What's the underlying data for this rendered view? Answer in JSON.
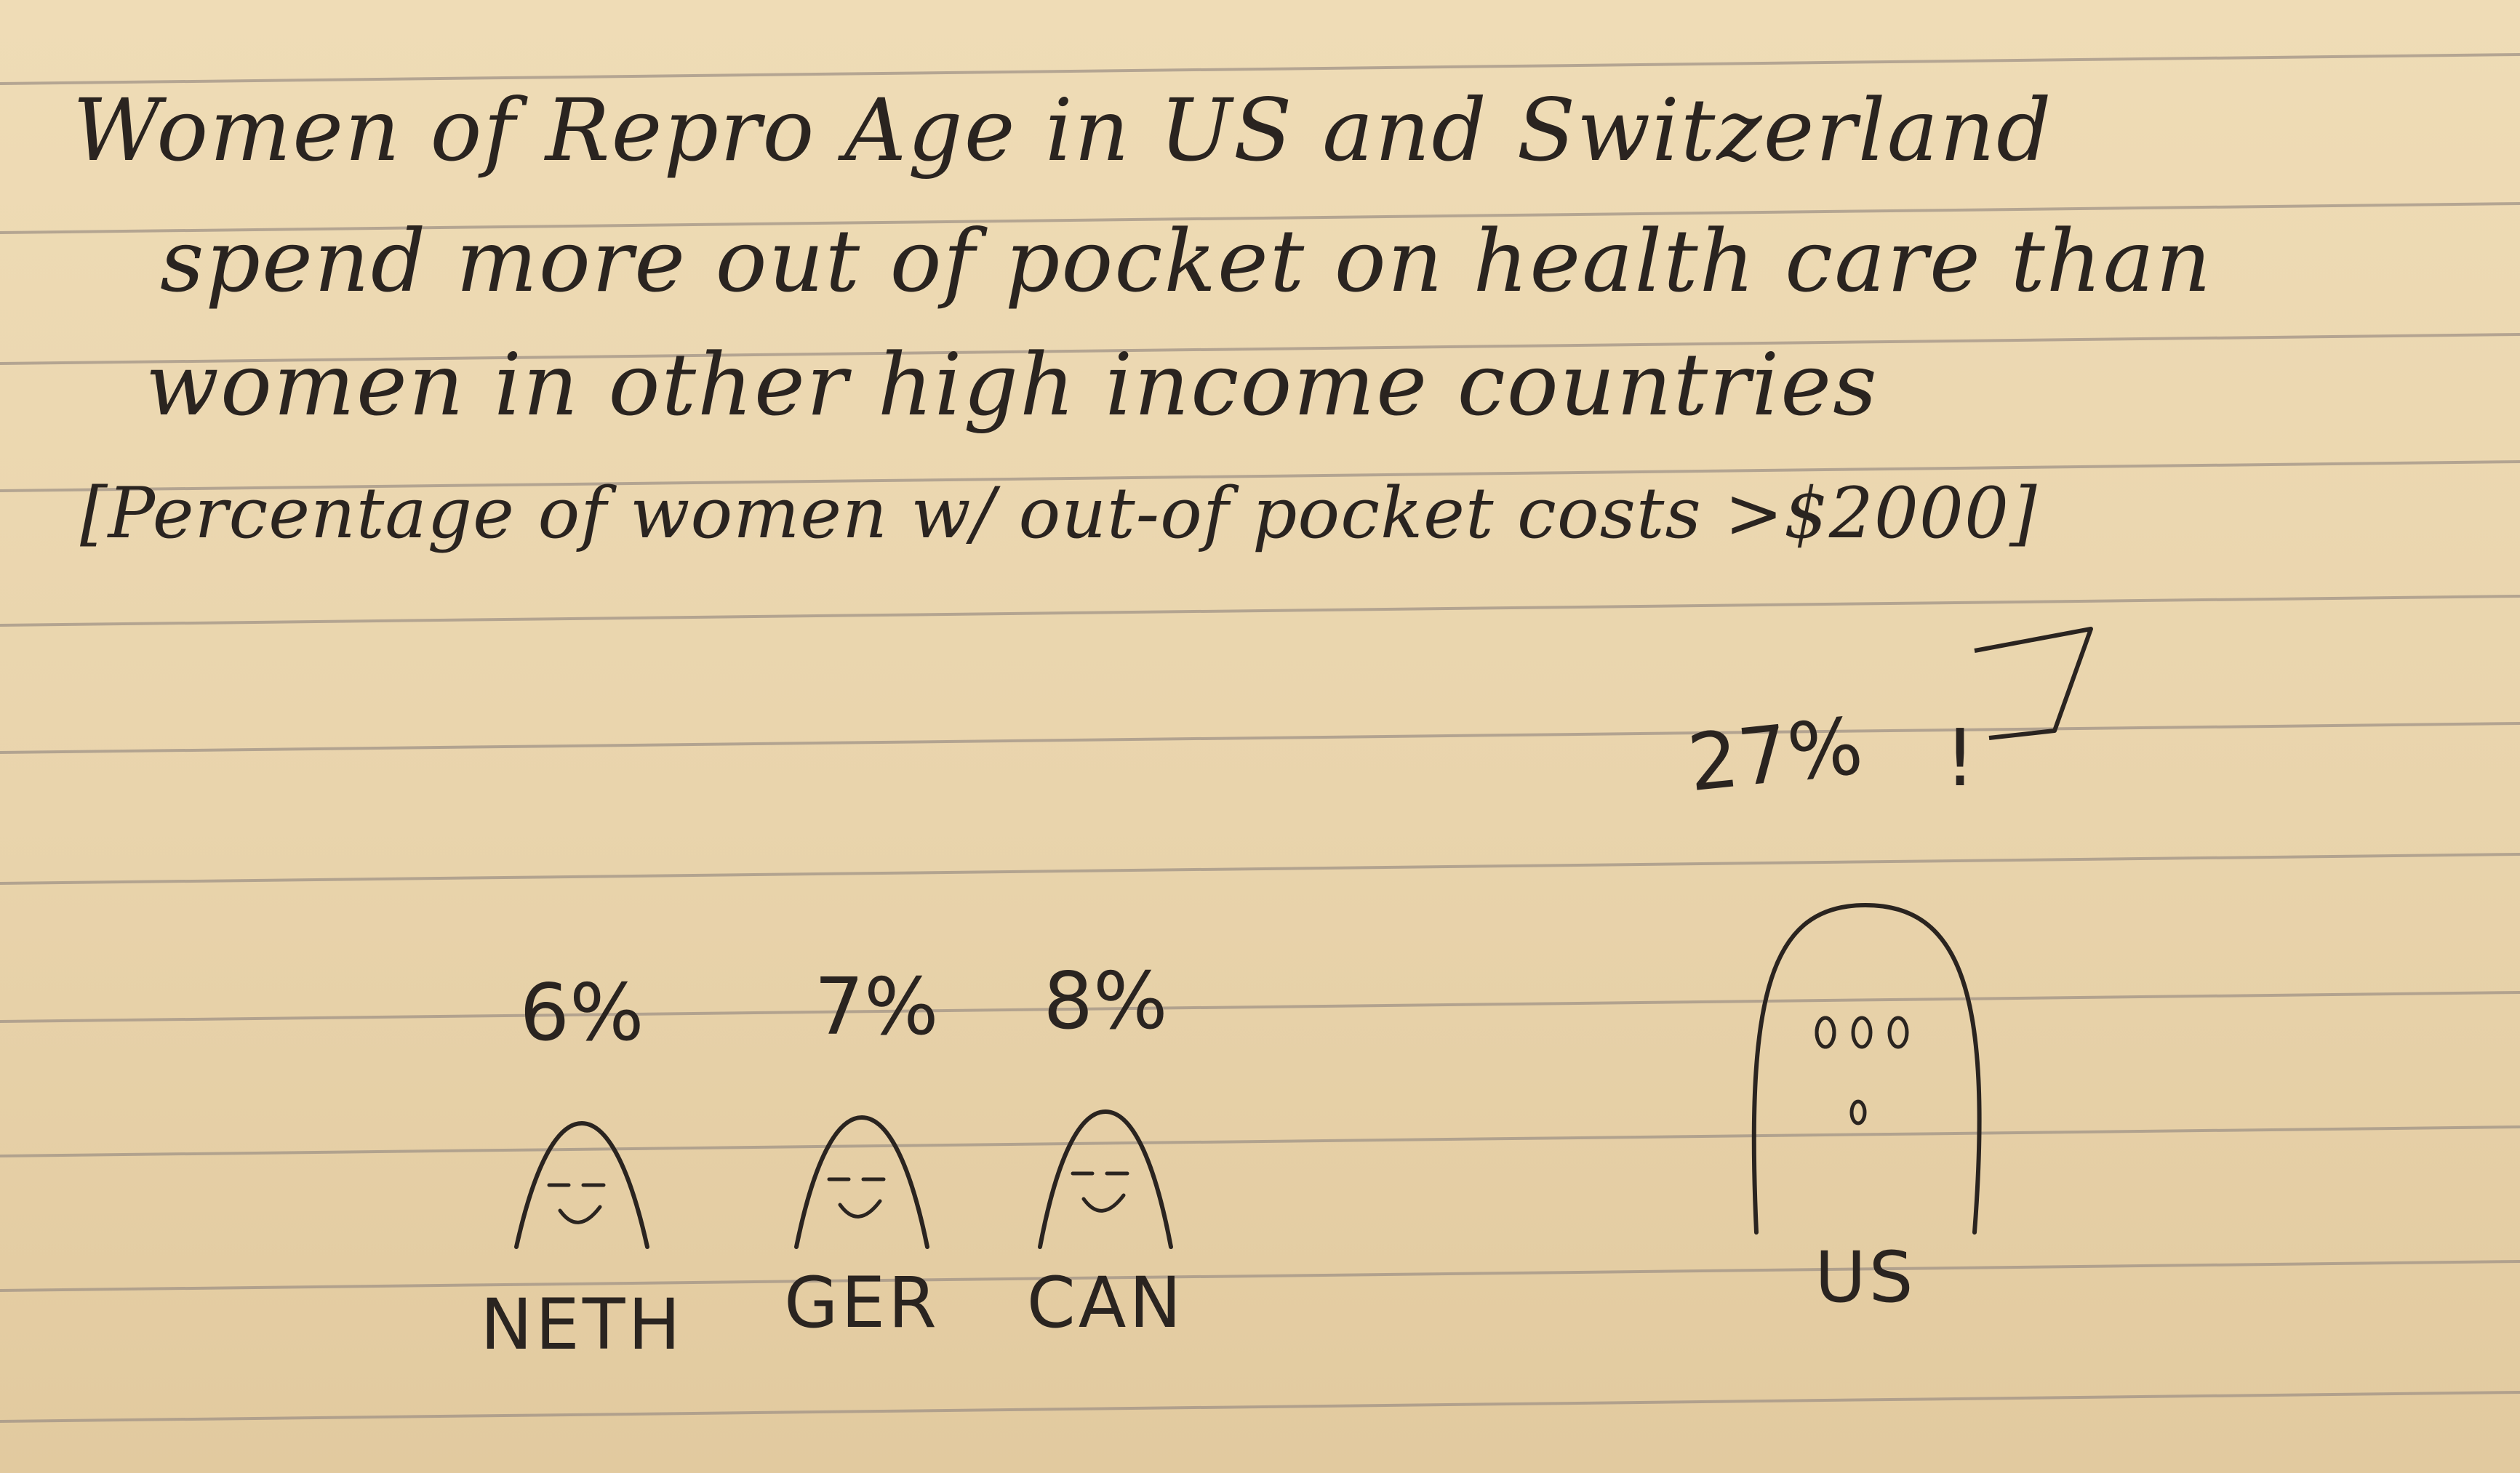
{
  "chart_data": {
    "type": "bar",
    "title": [
      "Women of Repro Age in US and Switzerland",
      "spend more out of pocket on health care than",
      "women in other high income countries"
    ],
    "subtitle": "[Percentage of women w/ out-of pocket costs >$2000]",
    "categories": [
      "NETH",
      "GER",
      "CAN",
      "US"
    ],
    "values": [
      6,
      7,
      8,
      27
    ],
    "value_labels": [
      "6%",
      "7%",
      "8%",
      "27%"
    ],
    "exclamation": "!",
    "units": "%",
    "style": "hand-drawn faces sized by value on lined notebook paper",
    "ink_color": "#2a2420",
    "paper_color": "#ead7b1",
    "rule_color": "#9c8f84"
  }
}
